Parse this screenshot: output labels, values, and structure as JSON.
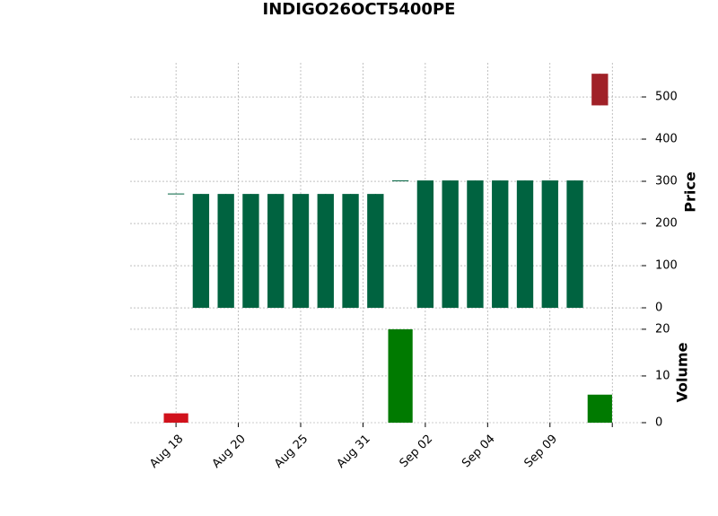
{
  "chart_data": {
    "type": "candlestick",
    "title": "INDIGO26OCT5400PE",
    "ylabel": "Price",
    "y2label": "Volume",
    "open": [
      270,
      0,
      0,
      0,
      0,
      0,
      0,
      0,
      0,
      301,
      0,
      0,
      0,
      0,
      0,
      0,
      0,
      555
    ],
    "high": [
      270,
      270,
      270,
      270,
      270,
      270,
      270,
      270,
      270,
      301,
      302,
      302,
      302,
      302,
      302,
      302,
      302,
      555
    ],
    "low": [
      270,
      0,
      0,
      0,
      0,
      0,
      0,
      0,
      0,
      301,
      0,
      0,
      0,
      0,
      0,
      0,
      0,
      480
    ],
    "close": [
      270,
      270,
      270,
      270,
      270,
      270,
      270,
      270,
      270,
      301,
      302,
      302,
      302,
      302,
      302,
      302,
      302,
      480
    ],
    "volume": [
      2,
      0,
      0,
      0,
      0,
      0,
      0,
      0,
      0,
      20,
      0,
      0,
      0,
      0,
      0,
      0,
      0,
      6
    ],
    "volume_colors": [
      "#d1121c",
      "#007a00",
      "#007a00",
      "#007a00",
      "#007a00",
      "#007a00",
      "#007a00",
      "#007a00",
      "#007a00",
      "#007a00",
      "#007a00",
      "#007a00",
      "#007a00",
      "#007a00",
      "#007a00",
      "#007a00",
      "#007a00",
      "#007a00"
    ],
    "up_color": "#006340",
    "down_color": "#a02128",
    "xlim": [
      -1.84,
      18.68
    ],
    "xticks": [
      {
        "value": 0,
        "label": "Aug 18"
      },
      {
        "value": 2.5,
        "label": "Aug 20"
      },
      {
        "value": 5,
        "label": "Aug 25"
      },
      {
        "value": 7.5,
        "label": "Aug 31"
      },
      {
        "value": 10,
        "label": "Sep 02"
      },
      {
        "value": 12.5,
        "label": "Sep 04"
      },
      {
        "value": 15,
        "label": "Sep 09"
      },
      {
        "value": 17.5,
        "label": null
      }
    ],
    "ylim": [
      -25.5,
      580.9
    ],
    "yticks": [
      0,
      100,
      200,
      300,
      400,
      500
    ],
    "y2lim": [
      0,
      21.9
    ],
    "y2ticks": [
      0,
      10,
      20
    ],
    "grid": true
  }
}
